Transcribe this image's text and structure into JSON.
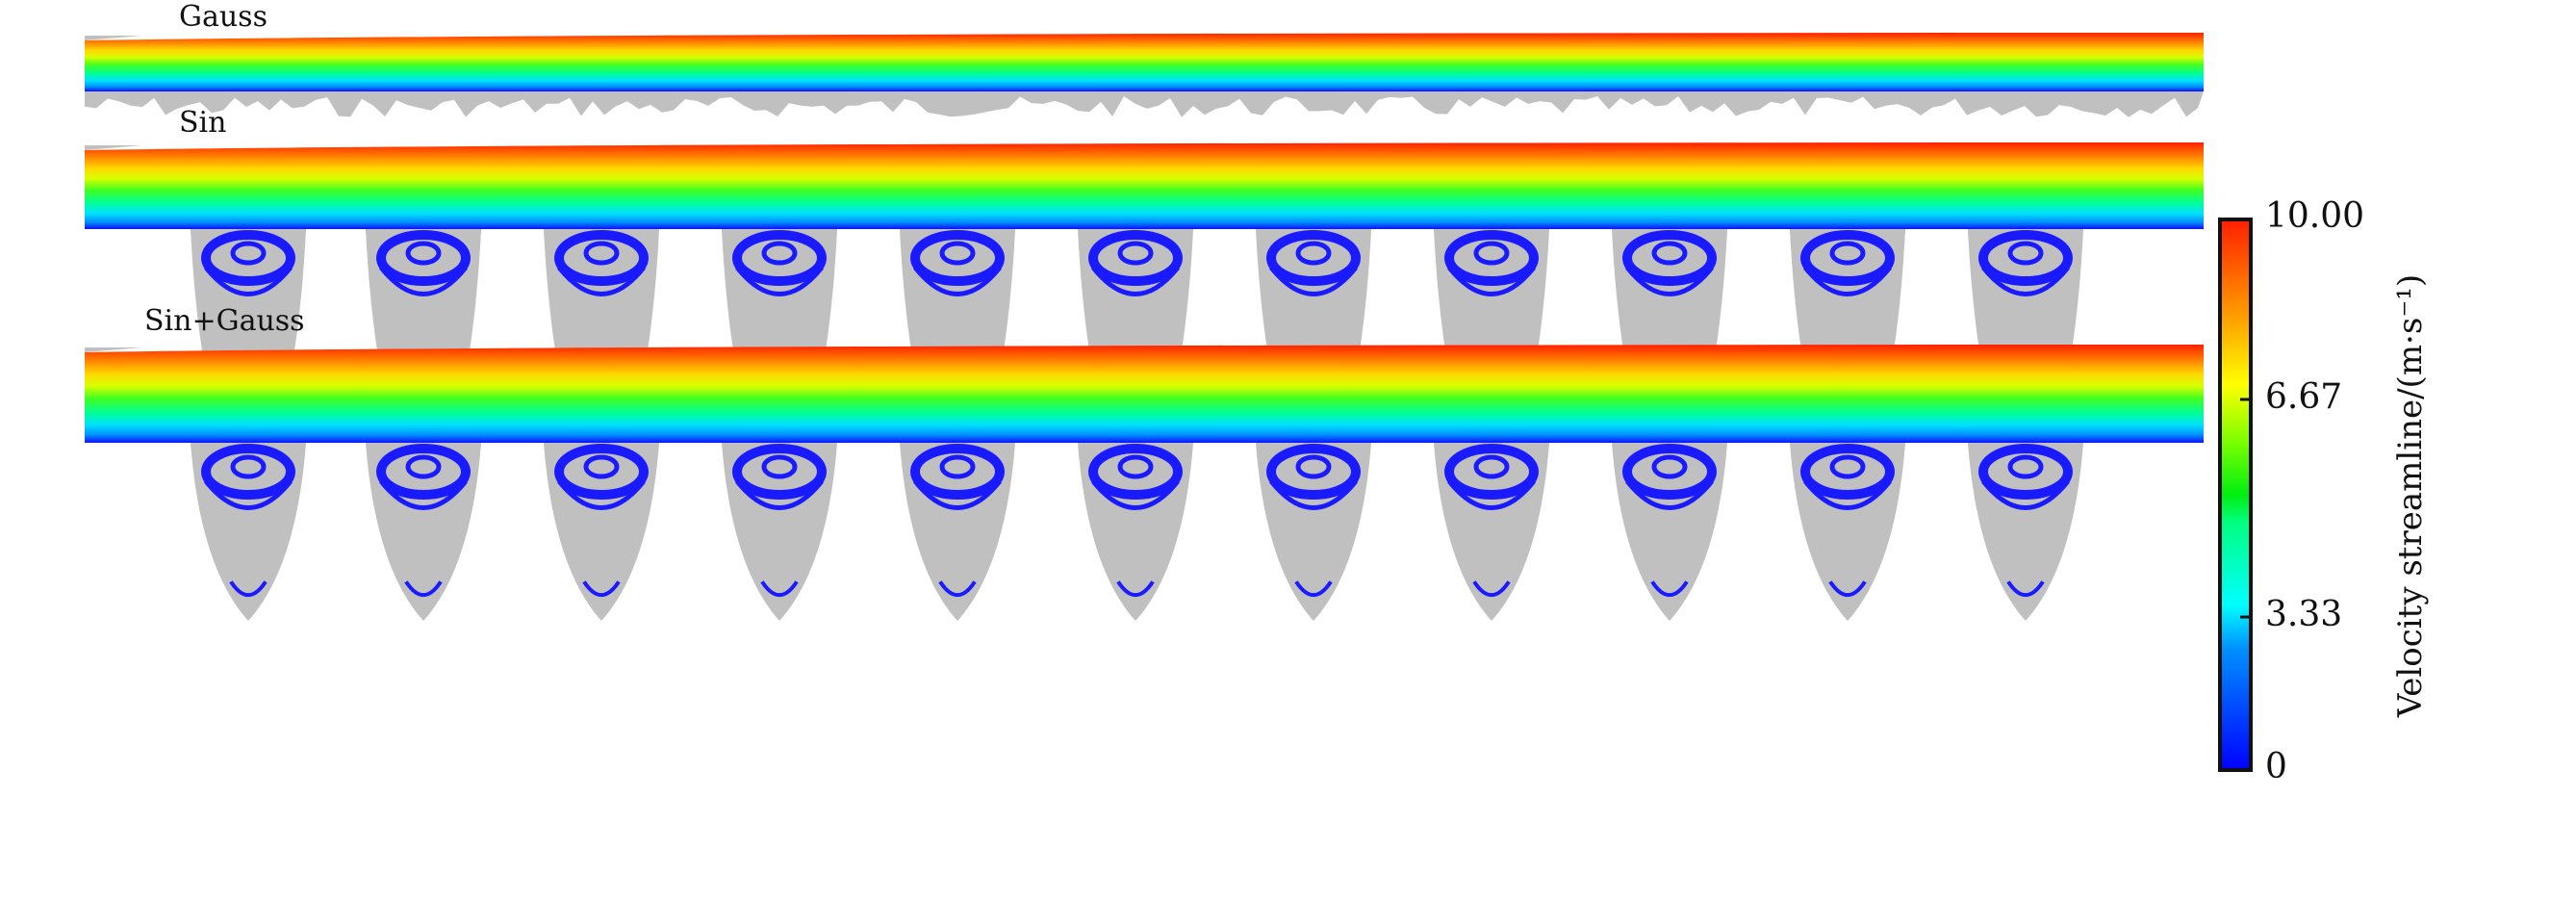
{
  "panels": [
    {
      "label": "Gauss",
      "cavities": "gauss"
    },
    {
      "label": "Sin",
      "cavities": "sin"
    },
    {
      "label": "Sin+Gauss",
      "cavities": "sin"
    }
  ],
  "colorbar": {
    "title": "Velocity streamline/(m·s⁻¹)",
    "ticks": [
      "0",
      "3.33",
      "6.67",
      "10.00"
    ],
    "range": [
      0,
      10
    ],
    "colormap": [
      "#0000ff",
      "#0080ff",
      "#00ffff",
      "#00ff80",
      "#00ff00",
      "#80ff00",
      "#ffff00",
      "#ffa000",
      "#ff6000",
      "#ff1e00"
    ]
  },
  "colors": {
    "solid": "#c0c0c0",
    "vortex": "#1a1aff"
  }
}
